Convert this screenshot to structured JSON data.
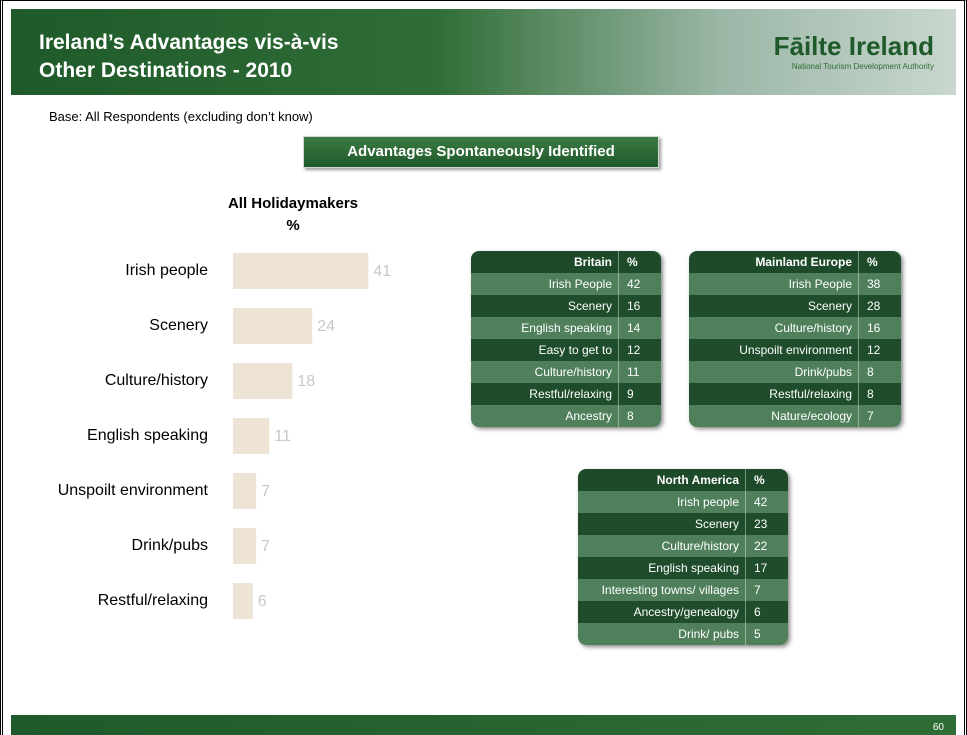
{
  "header": {
    "title_lines": [
      "Ireland’s Advantages vis-à-vis",
      "Other Destinations - 2010"
    ],
    "logo_name": "Fāilte Ireland",
    "logo_tagline": "National Tourism Development Authority"
  },
  "base": "Base: All Respondents (excluding don’t know)",
  "banner": "Advantages Spontaneously Identified",
  "chart_data": {
    "type": "bar",
    "orientation": "horizontal",
    "title_lines": [
      "All Holidaymakers",
      "%"
    ],
    "categories": [
      "Irish people",
      "Scenery",
      "Culture/history",
      "English speaking",
      "Unspoilt environment",
      "Drink/pubs",
      "Restful/relaxing"
    ],
    "values": [
      41,
      24,
      18,
      11,
      7,
      7,
      6
    ],
    "color": "#ede4d6",
    "label_color": "#c8c8c8"
  },
  "tables": [
    {
      "header": [
        "Britain",
        "%"
      ],
      "rows": [
        [
          "Irish People",
          42
        ],
        [
          "Scenery",
          16
        ],
        [
          "English speaking",
          14
        ],
        [
          "Easy to get to",
          12
        ],
        [
          "Culture/history",
          11
        ],
        [
          "Restful/relaxing",
          9
        ],
        [
          "Ancestry",
          8
        ]
      ]
    },
    {
      "header": [
        "Mainland Europe",
        "%"
      ],
      "rows": [
        [
          "Irish People",
          38
        ],
        [
          "Scenery",
          28
        ],
        [
          "Culture/history",
          16
        ],
        [
          "Unspoilt environment",
          12
        ],
        [
          "Drink/pubs",
          8
        ],
        [
          "Restful/relaxing",
          8
        ],
        [
          "Nature/ecology",
          7
        ]
      ]
    },
    {
      "header": [
        "North America",
        "%"
      ],
      "rows": [
        [
          "Irish people",
          42
        ],
        [
          "Scenery",
          23
        ],
        [
          "Culture/history",
          22
        ],
        [
          "English speaking",
          17
        ],
        [
          "Interesting towns/ villages",
          7
        ],
        [
          "Ancestry/genealogy",
          6
        ],
        [
          "Drink/ pubs",
          5
        ]
      ]
    }
  ],
  "page_number": "60"
}
